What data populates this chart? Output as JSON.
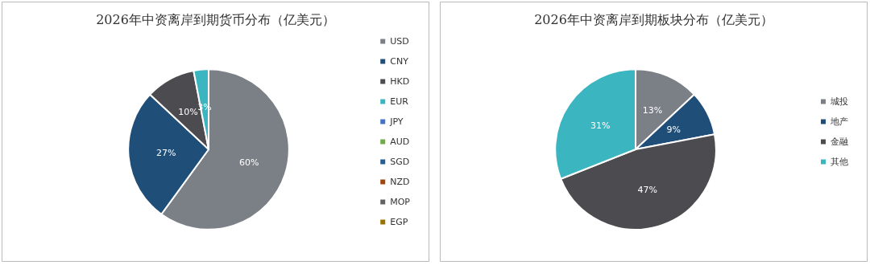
{
  "chart_data": [
    {
      "type": "pie",
      "title": "2026年中资离岸到期货币分布（亿美元）",
      "categories": [
        "USD",
        "CNY",
        "HKD",
        "EUR",
        "JPY",
        "AUD",
        "SGD",
        "NZD",
        "MOP",
        "EGP"
      ],
      "values": [
        60,
        27,
        10,
        3,
        0,
        0,
        0,
        0,
        0,
        0
      ],
      "colors": [
        "#7b7f86",
        "#1f4e79",
        "#4b4b50",
        "#3bb6c1",
        "#4472c4",
        "#70ad47",
        "#255e91",
        "#9e480e",
        "#636363",
        "#997300"
      ],
      "value_labels": [
        "60%",
        "27%",
        "10%",
        "3%",
        null,
        null,
        null,
        null,
        null,
        null
      ],
      "legend": "right"
    },
    {
      "type": "pie",
      "title": "2026年中资离岸到期板块分布（亿美元）",
      "categories": [
        "城投",
        "地产",
        "金融",
        "其他"
      ],
      "values": [
        13,
        9,
        47,
        31
      ],
      "colors": [
        "#7b7f86",
        "#1f4e79",
        "#4b4b50",
        "#3bb6c1"
      ],
      "value_labels": [
        "13%",
        "9%",
        "47%",
        "31%"
      ],
      "legend": "right"
    }
  ]
}
